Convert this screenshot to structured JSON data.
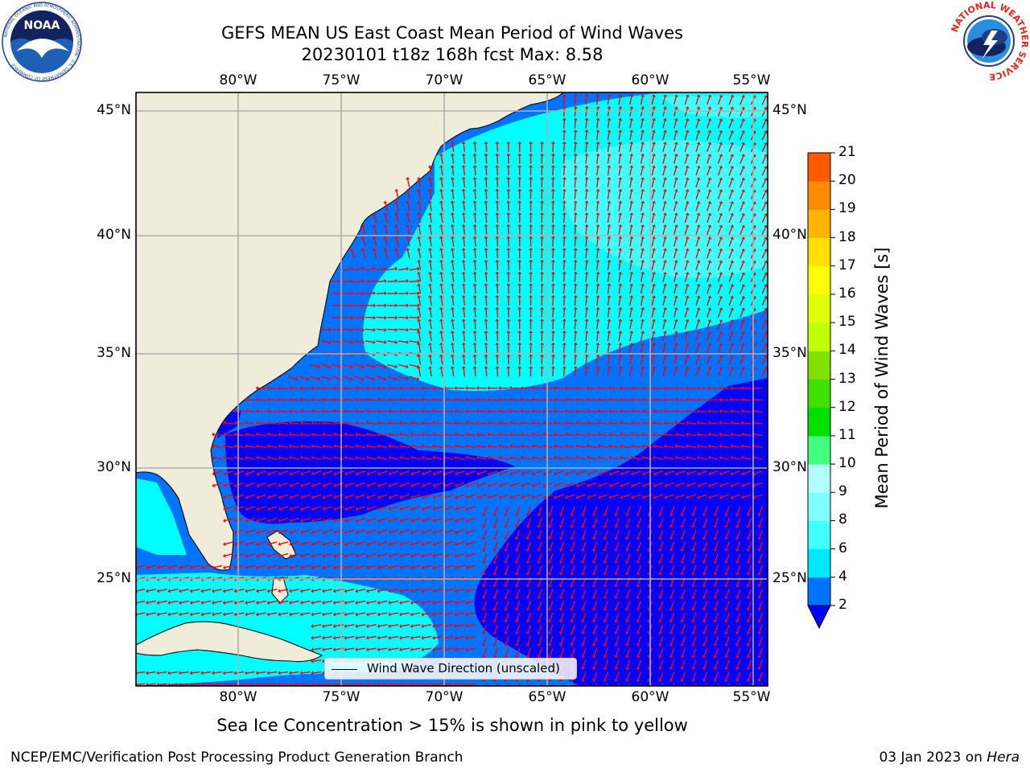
{
  "title": {
    "line1": "GEFS MEAN US East Coast Mean Period of Wind Waves",
    "line2": "20230101 t18z 168h fcst   Max: 8.58"
  },
  "map": {
    "lon_labels": [
      "80°W",
      "75°W",
      "70°W",
      "65°W",
      "60°W",
      "55°W"
    ],
    "lat_labels": [
      "45°N",
      "40°N",
      "35°N",
      "30°N",
      "25°N"
    ]
  },
  "legend": {
    "label": "Wind Wave Direction (unscaled)"
  },
  "colorbar": {
    "title": "Mean Period of Wind Waves [s]",
    "ticks": [
      "2",
      "4",
      "6",
      "8",
      "9",
      "10",
      "11",
      "12",
      "13",
      "14",
      "15",
      "16",
      "17",
      "18",
      "19",
      "20",
      "21"
    ],
    "colors": [
      "#0073ff",
      "#00e8ff",
      "#40ffff",
      "#80ffff",
      "#b3ffff",
      "#40ff80",
      "#00e000",
      "#40e000",
      "#80e000",
      "#c0ff00",
      "#e0ff00",
      "#ffff00",
      "#ffe000",
      "#ffb400",
      "#ff8c00",
      "#ff5a00",
      "#ff2800",
      "#ff0000"
    ],
    "under_color": "#0000ff"
  },
  "logos": {
    "noaa_text": "NOAA",
    "noaa_ring": "NATIONAL OCEANIC AND ATMOSPHERIC ADMINISTRATION · U.S. DEPARTMENT OF COMMERCE",
    "nws_ring": "NATIONAL WEATHER SERVICE"
  },
  "colors": {
    "land": "#efedda",
    "grid": "#b0b0b0",
    "arrow": "#ff0000",
    "band_deep": "#0000ff",
    "band_2_4": "#0073ff",
    "band_4_6": "#00ffff",
    "band_6_8": "#40ffff"
  },
  "footer": {
    "ice_note": "Sea Ice Concentration > 15% is shown in pink to yellow",
    "left": "NCEP/EMC/Verification Post Processing Product Generation Branch",
    "date": "03 Jan 2023 on",
    "host": "Hera"
  }
}
